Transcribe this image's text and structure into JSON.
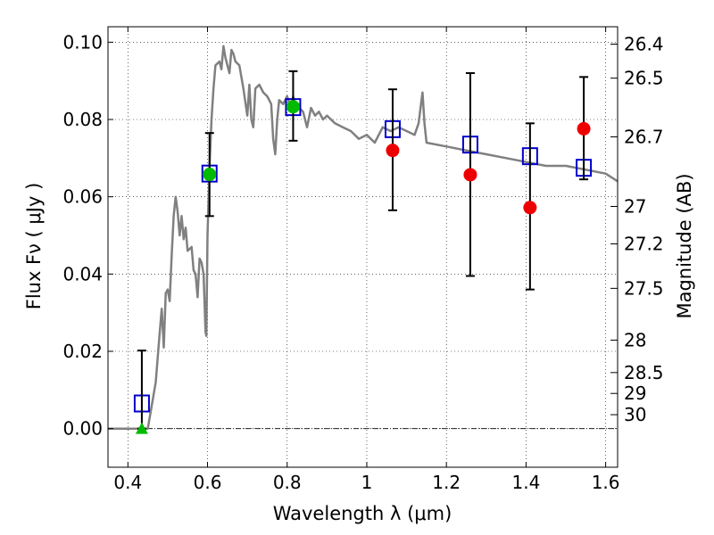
{
  "chart_data": {
    "type": "scatter",
    "title": "",
    "xlabel": "Wavelength  λ (μm)",
    "ylabel": "Flux  Fν  ( μJy )",
    "y2label": "Magnitude (AB)",
    "xlim": [
      0.35,
      1.63
    ],
    "ylim": [
      -0.01,
      0.104
    ],
    "grid": true,
    "x_ticks": [
      0.4,
      0.6,
      0.8,
      1.0,
      1.2,
      1.4,
      1.6
    ],
    "x_tick_labels": [
      "0.4",
      "0.6",
      "0.8",
      "1",
      "1.2",
      "1.4",
      "1.6"
    ],
    "y_ticks": [
      0.0,
      0.02,
      0.04,
      0.06,
      0.08,
      0.1
    ],
    "y_tick_labels": [
      "0.00",
      "0.02",
      "0.04",
      "0.06",
      "0.08",
      "0.10"
    ],
    "mag_ticks": [
      {
        "label": "26.4",
        "flux": 0.0995
      },
      {
        "label": "26.5",
        "flux": 0.0907
      },
      {
        "label": "26.7",
        "flux": 0.0755
      },
      {
        "label": "27",
        "flux": 0.0575
      },
      {
        "label": "27.2",
        "flux": 0.0478
      },
      {
        "label": "27.5",
        "flux": 0.0363
      },
      {
        "label": "28",
        "flux": 0.0229
      },
      {
        "label": "28.5",
        "flux": 0.0145
      },
      {
        "label": "29",
        "flux": 0.0091
      },
      {
        "label": "30",
        "flux": 0.0036
      }
    ],
    "colors": {
      "model": "#808080",
      "model_flux": "#0000cc",
      "observed": "#ee0000",
      "secondary": "#00bb00",
      "errorbar": "#000000",
      "zero_line": "#000000"
    },
    "series": [
      {
        "marker": "line",
        "points": [
          [
            0.35,
            0.0
          ],
          [
            0.42,
            0.0
          ],
          [
            0.45,
            0.0
          ],
          [
            0.47,
            0.012
          ],
          [
            0.48,
            0.025
          ],
          [
            0.485,
            0.031
          ],
          [
            0.49,
            0.021
          ],
          [
            0.495,
            0.035
          ],
          [
            0.5,
            0.036
          ],
          [
            0.505,
            0.033
          ],
          [
            0.51,
            0.045
          ],
          [
            0.515,
            0.055
          ],
          [
            0.52,
            0.06
          ],
          [
            0.525,
            0.056
          ],
          [
            0.53,
            0.05
          ],
          [
            0.535,
            0.055
          ],
          [
            0.54,
            0.049
          ],
          [
            0.545,
            0.052
          ],
          [
            0.55,
            0.046
          ],
          [
            0.56,
            0.047
          ],
          [
            0.565,
            0.041
          ],
          [
            0.57,
            0.04
          ],
          [
            0.575,
            0.034
          ],
          [
            0.58,
            0.044
          ],
          [
            0.585,
            0.043
          ],
          [
            0.59,
            0.04
          ],
          [
            0.595,
            0.025
          ],
          [
            0.597,
            0.024
          ],
          [
            0.6,
            0.05
          ],
          [
            0.605,
            0.068
          ],
          [
            0.61,
            0.08
          ],
          [
            0.615,
            0.088
          ],
          [
            0.62,
            0.094
          ],
          [
            0.63,
            0.095
          ],
          [
            0.635,
            0.093
          ],
          [
            0.64,
            0.099
          ],
          [
            0.645,
            0.096
          ],
          [
            0.65,
            0.094
          ],
          [
            0.655,
            0.092
          ],
          [
            0.66,
            0.098
          ],
          [
            0.665,
            0.097
          ],
          [
            0.67,
            0.095
          ],
          [
            0.68,
            0.094
          ],
          [
            0.69,
            0.088
          ],
          [
            0.7,
            0.081
          ],
          [
            0.705,
            0.089
          ],
          [
            0.71,
            0.08
          ],
          [
            0.715,
            0.078
          ],
          [
            0.72,
            0.088
          ],
          [
            0.73,
            0.089
          ],
          [
            0.74,
            0.087
          ],
          [
            0.75,
            0.086
          ],
          [
            0.76,
            0.084
          ],
          [
            0.765,
            0.075
          ],
          [
            0.77,
            0.071
          ],
          [
            0.775,
            0.08
          ],
          [
            0.78,
            0.085
          ],
          [
            0.79,
            0.084
          ],
          [
            0.8,
            0.086
          ],
          [
            0.81,
            0.083
          ],
          [
            0.815,
            0.086
          ],
          [
            0.82,
            0.084
          ],
          [
            0.83,
            0.083
          ],
          [
            0.84,
            0.082
          ],
          [
            0.85,
            0.078
          ],
          [
            0.86,
            0.083
          ],
          [
            0.87,
            0.081
          ],
          [
            0.88,
            0.082
          ],
          [
            0.89,
            0.08
          ],
          [
            0.9,
            0.081
          ],
          [
            0.92,
            0.079
          ],
          [
            0.94,
            0.078
          ],
          [
            0.96,
            0.077
          ],
          [
            0.98,
            0.075
          ],
          [
            1.0,
            0.076
          ],
          [
            1.02,
            0.074
          ],
          [
            1.04,
            0.078
          ],
          [
            1.06,
            0.077
          ],
          [
            1.08,
            0.078
          ],
          [
            1.1,
            0.077
          ],
          [
            1.12,
            0.076
          ],
          [
            1.13,
            0.079
          ],
          [
            1.14,
            0.087
          ],
          [
            1.145,
            0.079
          ],
          [
            1.15,
            0.074
          ],
          [
            1.2,
            0.073
          ],
          [
            1.25,
            0.072
          ],
          [
            1.3,
            0.071
          ],
          [
            1.35,
            0.07
          ],
          [
            1.4,
            0.069
          ],
          [
            1.45,
            0.068
          ],
          [
            1.5,
            0.068
          ],
          [
            1.55,
            0.067
          ],
          [
            1.6,
            0.066
          ],
          [
            1.63,
            0.064
          ]
        ]
      },
      {
        "marker": "open-square",
        "points": [
          [
            0.435,
            0.0065
          ],
          [
            0.605,
            0.066
          ],
          [
            0.815,
            0.0832
          ],
          [
            1.065,
            0.0775
          ],
          [
            1.26,
            0.0735
          ],
          [
            1.41,
            0.0705
          ],
          [
            1.545,
            0.0675
          ]
        ]
      },
      {
        "marker": "filled-circle",
        "points": [
          [
            1.065,
            0.072
          ],
          [
            1.26,
            0.0657
          ],
          [
            1.41,
            0.0572
          ],
          [
            1.545,
            0.0776
          ]
        ],
        "errors": [
          [
            0.0565,
            0.0878
          ],
          [
            0.0395,
            0.092
          ],
          [
            0.036,
            0.079
          ],
          [
            0.0645,
            0.091
          ]
        ]
      },
      {
        "marker": "filled-circle",
        "points": [
          [
            0.605,
            0.0658
          ],
          [
            0.815,
            0.0833
          ]
        ],
        "errors": [
          [
            0.055,
            0.0765
          ],
          [
            0.0745,
            0.0925
          ]
        ]
      },
      {
        "marker": "filled-triangle",
        "points": [
          [
            0.435,
            0.0
          ]
        ],
        "errors": [
          [
            0.0,
            0.0202
          ]
        ]
      }
    ]
  }
}
